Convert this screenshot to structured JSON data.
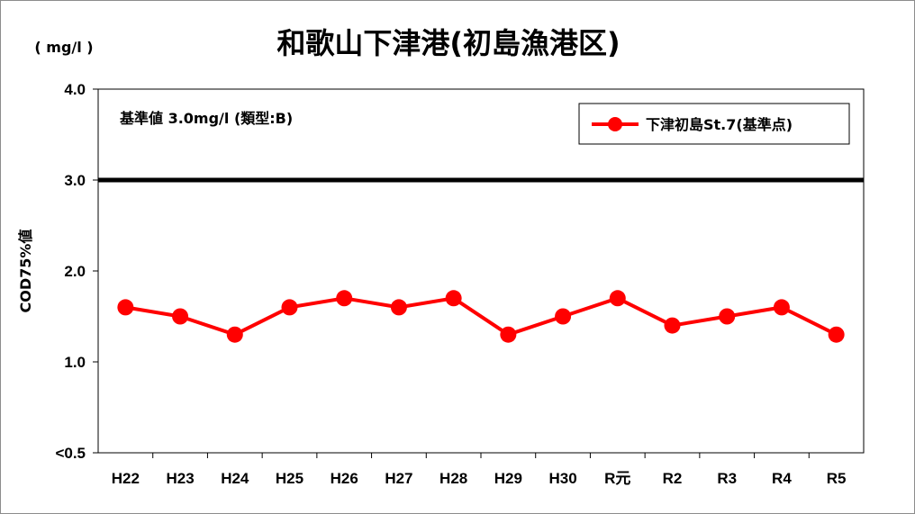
{
  "chart_data": {
    "type": "line",
    "title": "和歌山下津港(初島漁港区)",
    "unit_label": "( mg/l )",
    "ylabel": "COD75%値",
    "xlabel": "",
    "categories": [
      "H22",
      "H23",
      "H24",
      "H25",
      "H26",
      "H27",
      "H28",
      "H29",
      "H30",
      "R元",
      "R2",
      "R3",
      "R4",
      "R5"
    ],
    "series": [
      {
        "name": "下津初島St.7(基準点)",
        "values": [
          1.6,
          1.5,
          1.3,
          1.6,
          1.7,
          1.6,
          1.7,
          1.3,
          1.5,
          1.7,
          1.4,
          1.5,
          1.6,
          1.3
        ]
      }
    ],
    "ylim": [
      0.0,
      4.0
    ],
    "y_ticks": [
      {
        "value": 0.0,
        "label": "<0.5"
      },
      {
        "value": 1.0,
        "label": "1.0"
      },
      {
        "value": 2.0,
        "label": "2.0"
      },
      {
        "value": 3.0,
        "label": "3.0"
      },
      {
        "value": 4.0,
        "label": "4.0"
      }
    ],
    "reference_line": {
      "value": 3.0
    },
    "annotation": "基準値  3.0mg/l (類型:B)",
    "legend_position": "top-right",
    "grid": false,
    "colors": {
      "series": "#ff0000",
      "reference": "#000000",
      "axis": "#000000"
    }
  }
}
